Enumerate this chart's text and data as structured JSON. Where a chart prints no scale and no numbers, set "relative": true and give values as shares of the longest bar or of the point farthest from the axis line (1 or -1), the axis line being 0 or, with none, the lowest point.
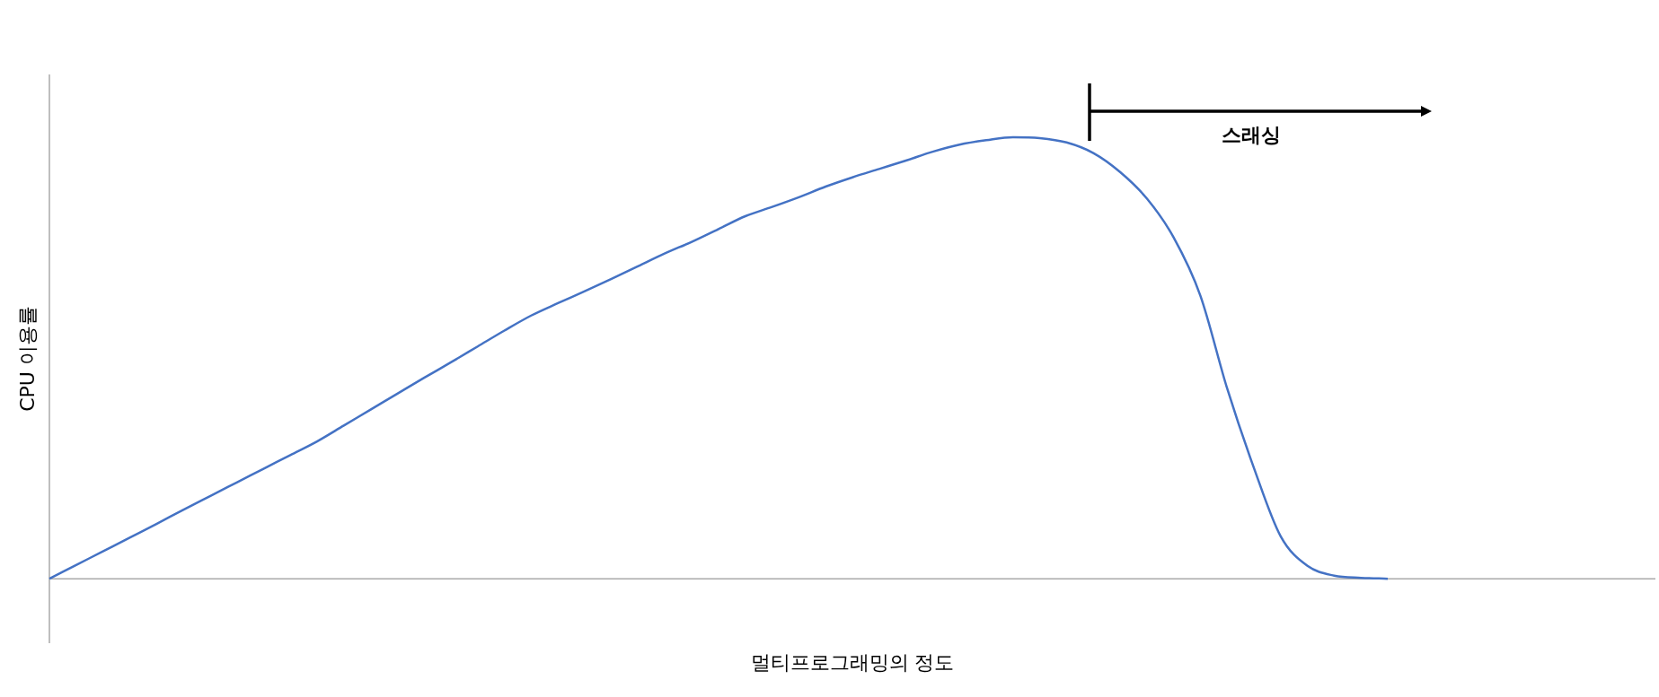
{
  "chart_data": {
    "type": "line",
    "relative": true,
    "xlabel": "멀티프로그래밍의 정도",
    "ylabel": "CPU 이용률",
    "annotations": [
      "스래싱"
    ],
    "legend": false,
    "marker": "none",
    "line_style": "solid",
    "categories": [
      null,
      null,
      null,
      null,
      null,
      null,
      null,
      null,
      null,
      null,
      null,
      null,
      null,
      null,
      null,
      null,
      null,
      null,
      null,
      null,
      null,
      null,
      null,
      null,
      null,
      null,
      null,
      null,
      null,
      null,
      null,
      null,
      null,
      null,
      null,
      null,
      null,
      null,
      null,
      null,
      null,
      null,
      null,
      null,
      null,
      null,
      null,
      null,
      null,
      null,
      null,
      null,
      null,
      null,
      null,
      null,
      null,
      null,
      null,
      null,
      null
    ],
    "series": [
      {
        "color": "#4472c4",
        "values": [
          0,
          0.031,
          0.062,
          0.093,
          0.124,
          0.156,
          0.187,
          0.218,
          0.249,
          0.28,
          0.311,
          0.347,
          0.383,
          0.419,
          0.455,
          0.49,
          0.526,
          0.562,
          0.596,
          0.624,
          0.651,
          0.679,
          0.708,
          0.737,
          0.763,
          0.792,
          0.821,
          0.842,
          0.864,
          0.888,
          0.909,
          0.928,
          0.947,
          0.967,
          0.983,
          0.993,
          1,
          0.998,
          0.988,
          0.964,
          0.921,
          0.861,
          0.773,
          0.641,
          0.431,
          0.251,
          0.096,
          0.029,
          0.007,
          0.002,
          0,
          null,
          null,
          null,
          null,
          null,
          null,
          null,
          null,
          null,
          null
        ]
      }
    ]
  }
}
